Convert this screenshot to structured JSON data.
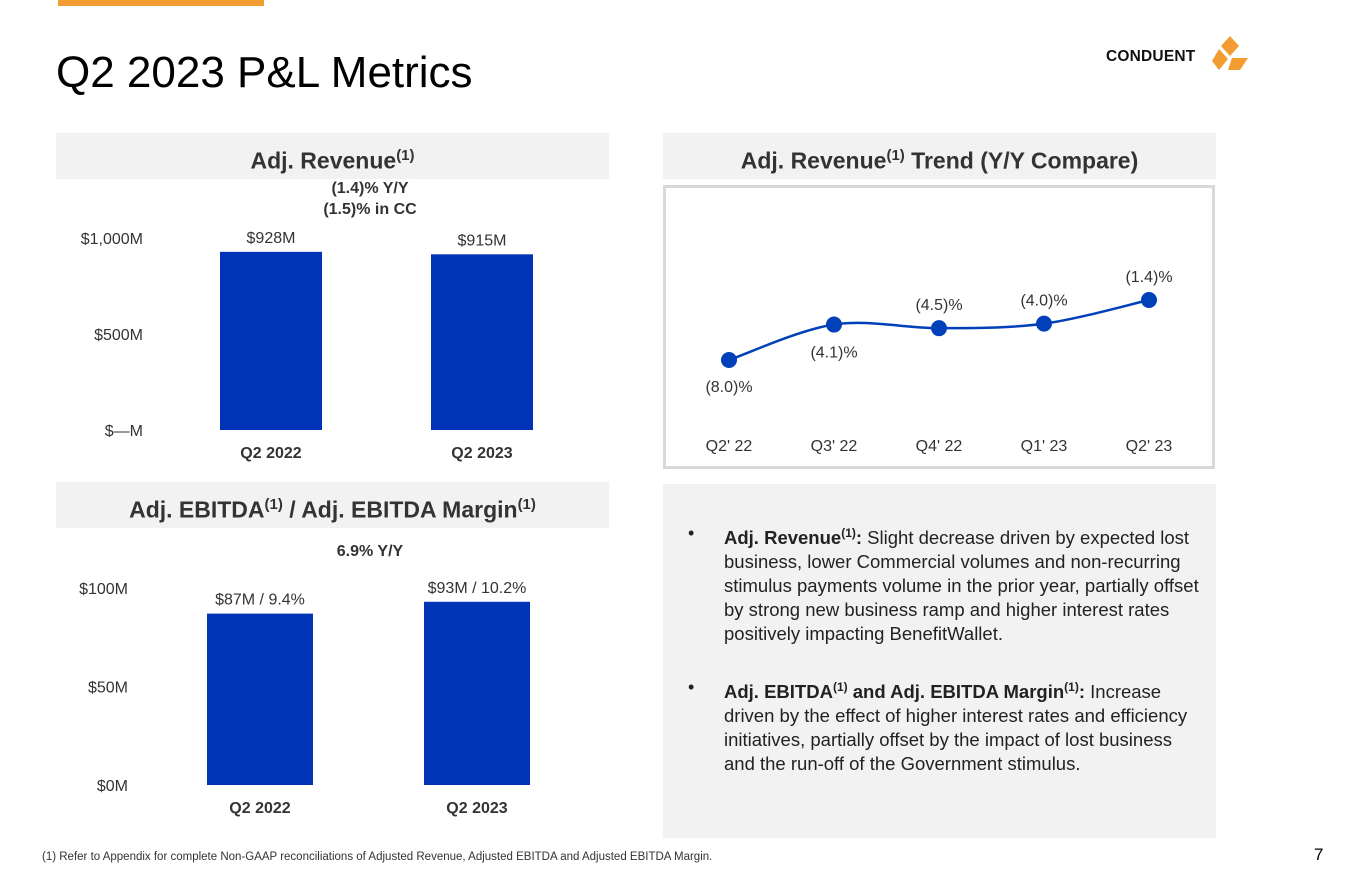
{
  "title": "Q2 2023 P&L Metrics",
  "brand": {
    "name": "CONDUENT",
    "colors": {
      "accent": "#f39c32",
      "bar": "#0033b5",
      "line": "#0040b8"
    }
  },
  "revenue_panel": {
    "heading": "Adj. Revenue",
    "heading_sup": "(1)",
    "yoy_line1": "(1.4)% Y/Y",
    "yoy_line2": "(1.5)% in CC"
  },
  "trend_panel": {
    "heading": "Adj. Revenue",
    "heading_sup": "(1)",
    "heading_rest": " Trend (Y/Y Compare)"
  },
  "ebitda_panel": {
    "heading_a": "Adj. EBITDA",
    "sup_a": "(1)",
    "heading_b": " / Adj. EBITDA Margin",
    "sup_b": "(1)",
    "yoy": "6.9% Y/Y"
  },
  "chart_data": [
    {
      "type": "bar",
      "title": "Adj. Revenue",
      "categories": [
        "Q2 2022",
        "Q2 2023"
      ],
      "values": [
        928,
        915
      ],
      "data_labels": [
        "$928M",
        "$915M"
      ],
      "ylim": [
        0,
        1000
      ],
      "yticks": [
        0,
        500,
        1000
      ],
      "ytick_labels": [
        "$—M",
        "$500M",
        "$1,000M"
      ],
      "units": "$M"
    },
    {
      "type": "line",
      "title": "Adj. Revenue Trend (Y/Y Compare)",
      "categories": [
        "Q2' 22",
        "Q3' 22",
        "Q4' 22",
        "Q1' 23",
        "Q2' 23"
      ],
      "values": [
        -8.0,
        -4.1,
        -4.5,
        -4.0,
        -1.4
      ],
      "data_labels": [
        "(8.0)%",
        "(4.1)%",
        "(4.5)%",
        "(4.0)%",
        "(1.4)%"
      ],
      "label_positions": [
        "below",
        "below",
        "above",
        "above",
        "above"
      ],
      "units": "%"
    },
    {
      "type": "bar",
      "title": "Adj. EBITDA / Adj. EBITDA Margin",
      "categories": [
        "Q2 2022",
        "Q2 2023"
      ],
      "values": [
        87,
        93
      ],
      "margins": [
        9.4,
        10.2
      ],
      "data_labels": [
        "$87M / 9.4%",
        "$93M / 10.2%"
      ],
      "ylim": [
        0,
        100
      ],
      "yticks": [
        0,
        50,
        100
      ],
      "ytick_labels": [
        "$0M",
        "$50M",
        "$100M"
      ],
      "units": "$M"
    }
  ],
  "bullets": [
    {
      "label": "Adj. Revenue",
      "sup": "(1)",
      "label_tail": ":",
      "text": " Slight decrease driven by expected lost business, lower Commercial volumes and non-recurring stimulus payments volume in the prior year, partially offset by strong new business ramp and higher interest rates positively impacting BenefitWallet."
    },
    {
      "label": "Adj. EBITDA",
      "sup": "(1)",
      "label_tail": " and Adj. EBITDA Margin",
      "sup2": "(1)",
      "label_tail2": ":",
      "text": " Increase driven by the effect of higher interest rates and efficiency initiatives, partially offset by the impact of lost business and the run-off of the Government stimulus."
    }
  ],
  "footnote": "(1) Refer to Appendix for complete Non-GAAP reconciliations of Adjusted Revenue, Adjusted EBITDA and Adjusted EBITDA Margin.",
  "page_number": "7"
}
